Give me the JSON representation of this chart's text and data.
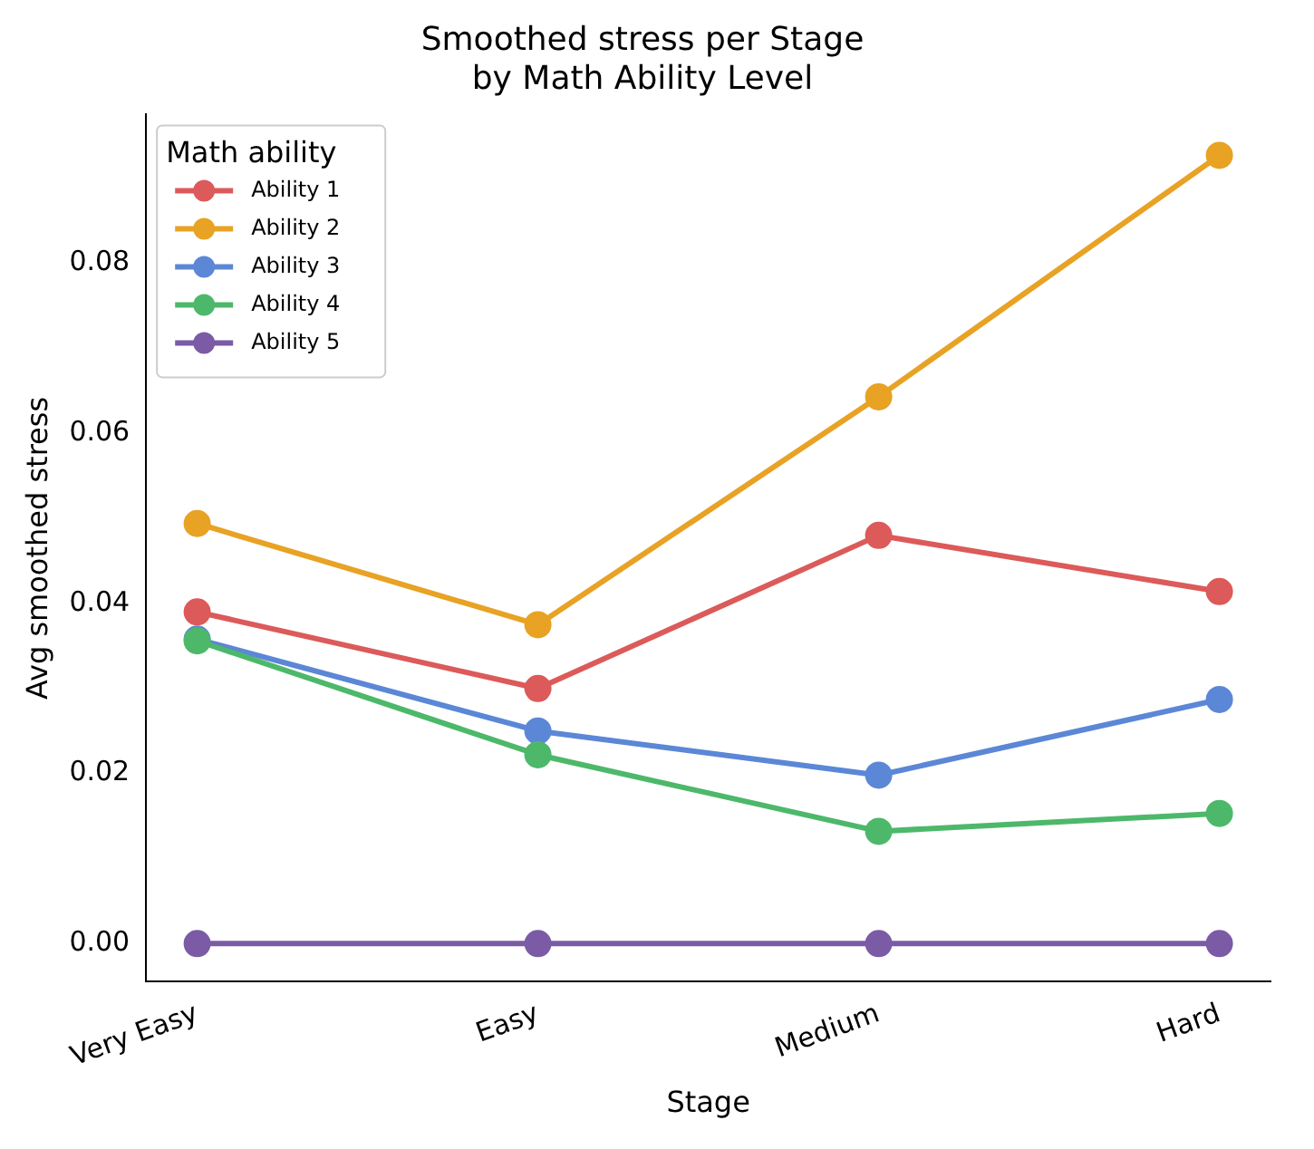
{
  "chart_data": {
    "type": "line",
    "title": "Smoothed stress per Stage\nby Math Ability Level",
    "xlabel": "Stage",
    "ylabel": "Avg smoothed stress",
    "legend_title": "Math ability",
    "categories": [
      "Very Easy",
      "Easy",
      "Medium",
      "Hard"
    ],
    "series": [
      {
        "name": "Ability 1",
        "color": "#dc5a5a",
        "values": [
          0.039,
          0.03,
          0.048,
          0.0414
        ]
      },
      {
        "name": "Ability 2",
        "color": "#e8a224",
        "values": [
          0.0494,
          0.0375,
          0.0643,
          0.0927
        ]
      },
      {
        "name": "Ability 3",
        "color": "#5b87d6",
        "values": [
          0.0358,
          0.025,
          0.0198,
          0.0287
        ]
      },
      {
        "name": "Ability 4",
        "color": "#4db86a",
        "values": [
          0.0356,
          0.0222,
          0.0132,
          0.0153
        ]
      },
      {
        "name": "Ability 5",
        "color": "#7b5aa6",
        "values": [
          0,
          0,
          0,
          0
        ]
      }
    ],
    "ylim": [
      -0.0045,
      0.0975
    ],
    "yticks": [
      {
        "value": 0,
        "label": "0.00"
      },
      {
        "value": 0.02,
        "label": "0.02"
      },
      {
        "value": 0.04,
        "label": "0.04"
      },
      {
        "value": 0.06,
        "label": "0.06"
      },
      {
        "value": 0.08,
        "label": "0.08"
      }
    ],
    "grid": false,
    "legend": "top left",
    "marker": "circle",
    "line_style": "solid"
  }
}
